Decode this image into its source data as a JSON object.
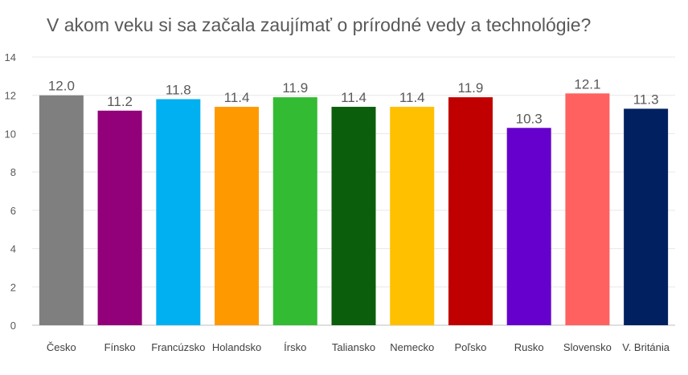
{
  "chart_data": {
    "type": "bar",
    "title": "V akom veku si sa začala zaujímať o prírodné vedy a technológie?",
    "categories": [
      "Česko",
      "Fínsko",
      "Francúzsko",
      "Holandsko",
      "Írsko",
      "Taliansko",
      "Nemecko",
      "Poľsko",
      "Rusko",
      "Slovensko",
      "V. Británia"
    ],
    "values": [
      12.0,
      11.2,
      11.8,
      11.4,
      11.9,
      11.4,
      11.4,
      11.9,
      10.3,
      12.1,
      11.3
    ],
    "value_labels": [
      "12.0",
      "11.2",
      "11.8",
      "11.4",
      "11.9",
      "11.4",
      "11.4",
      "11.9",
      "10.3",
      "12.1",
      "11.3"
    ],
    "colors": [
      "#7f7f7f",
      "#92007a",
      "#00b0f0",
      "#ff9900",
      "#33bb33",
      "#0b5e0b",
      "#ffc000",
      "#c00000",
      "#6600cc",
      "#ff6161",
      "#002060"
    ],
    "y_ticks": [
      "0",
      "2",
      "4",
      "6",
      "8",
      "10",
      "12",
      "14"
    ],
    "ylim": [
      0,
      14
    ],
    "grid": true,
    "xlabel": "",
    "ylabel": ""
  }
}
